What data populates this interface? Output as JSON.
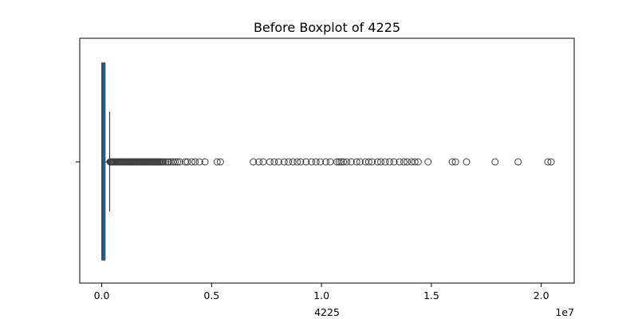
{
  "chart_data": {
    "type": "boxplot",
    "title": "Before Boxplot of 4225",
    "xlabel": "4225",
    "ylabel": "",
    "x_scale_exponent": "1e7",
    "xlim": [
      -1000000,
      21500000
    ],
    "xticks": [
      {
        "value": 0,
        "label": "0.0"
      },
      {
        "value": 5000000,
        "label": "0.5"
      },
      {
        "value": 10000000,
        "label": "1.0"
      },
      {
        "value": 15000000,
        "label": "1.5"
      },
      {
        "value": 20000000,
        "label": "2.0"
      }
    ],
    "orientation": "horizontal",
    "grid": false,
    "box": {
      "color": "#1f77b4",
      "whisker_low": 0,
      "q1": 5000,
      "median": 60000,
      "q3": 150000,
      "whisker_high": 360000
    },
    "outliers": [
      380000,
      400000,
      420000,
      450000,
      480000,
      510000,
      540000,
      580000,
      620000,
      660000,
      700000,
      750000,
      800000,
      850000,
      900000,
      950000,
      1000000,
      1050000,
      1100000,
      1150000,
      1200000,
      1250000,
      1300000,
      1350000,
      1400000,
      1450000,
      1500000,
      1550000,
      1600000,
      1650000,
      1700000,
      1750000,
      1800000,
      1850000,
      1900000,
      1950000,
      2000000,
      2050000,
      2100000,
      2150000,
      2200000,
      2250000,
      2300000,
      2350000,
      2400000,
      2450000,
      2500000,
      2550000,
      2600000,
      2650000,
      2700000,
      2750000,
      2800000,
      2900000,
      3000000,
      3050000,
      3150000,
      3250000,
      3350000,
      3450000,
      3550000,
      3800000,
      3900000,
      4100000,
      4250000,
      4450000,
      4700000,
      5250000,
      5400000,
      6900000,
      7150000,
      7350000,
      7650000,
      7850000,
      8050000,
      8300000,
      8500000,
      8700000,
      8900000,
      9050000,
      9300000,
      9550000,
      9750000,
      9950000,
      10200000,
      10400000,
      10700000,
      10800000,
      10900000,
      11000000,
      11150000,
      11350000,
      11600000,
      11750000,
      12000000,
      12150000,
      12300000,
      12550000,
      12700000,
      12900000,
      13100000,
      13300000,
      13550000,
      13750000,
      13900000,
      14100000,
      14250000,
      14400000,
      14850000,
      15950000,
      16100000,
      16600000,
      17900000,
      18950000,
      20300000,
      20450000
    ]
  }
}
